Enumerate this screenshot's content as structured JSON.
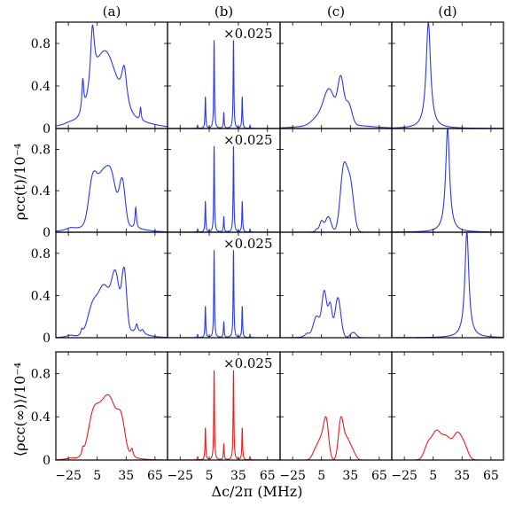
{
  "figure": {
    "column_labels": [
      "(a)",
      "(b)",
      "(c)",
      "(d)"
    ],
    "ylabel_top": "ρcc(t)/10⁻⁴",
    "ylabel_bottom": "⟨ρcc(∞)⟩/10⁻⁴",
    "xlabel": "Δc/2π (MHz)",
    "multiplier_label": "×0.025",
    "colors": {
      "time_dependent": "#2b3bdc",
      "steady_state": "#e0201b",
      "frame": "#000000"
    }
  },
  "chart_data": {
    "type": "line",
    "layout": "grid 4 rows × 4 columns",
    "x_range": [
      -38,
      78
    ],
    "y_range": [
      0,
      1.0
    ],
    "x_ticks": [
      -25,
      5,
      35,
      65
    ],
    "y_ticks": [
      0,
      0.4,
      0.8
    ],
    "panels": [
      {
        "row": 0,
        "col": 0,
        "color": "time_dependent",
        "scale_label": "",
        "peaks": [
          {
            "c": -23,
            "h": 0.02,
            "w": 8,
            "t": "L"
          },
          {
            "c": -10,
            "h": 0.3,
            "w": 1.2,
            "t": "L"
          },
          {
            "c": 0,
            "h": 0.58,
            "w": 2.5,
            "t": "L"
          },
          {
            "c": 13,
            "h": 0.6,
            "w": 11,
            "t": "G"
          },
          {
            "c": 33,
            "h": 0.38,
            "w": 3.5,
            "t": "L"
          },
          {
            "c": 50,
            "h": 0.12,
            "w": 0.8,
            "t": "L"
          },
          {
            "c": 20,
            "h": 0.1,
            "w": 30,
            "t": "G"
          }
        ]
      },
      {
        "row": 0,
        "col": 1,
        "color": "time_dependent",
        "scale_label": "×0.025",
        "peaks": [
          {
            "c": -7,
            "h": 0.03,
            "w": 0.4,
            "t": "L"
          },
          {
            "c": 1,
            "h": 0.3,
            "w": 0.45,
            "t": "L"
          },
          {
            "c": 10,
            "h": 0.84,
            "w": 0.45,
            "t": "L"
          },
          {
            "c": 20,
            "h": 0.15,
            "w": 0.45,
            "t": "L"
          },
          {
            "c": 30,
            "h": 0.84,
            "w": 0.45,
            "t": "L"
          },
          {
            "c": 39,
            "h": 0.3,
            "w": 0.45,
            "t": "L"
          },
          {
            "c": 47,
            "h": 0.03,
            "w": 0.4,
            "t": "L"
          }
        ]
      },
      {
        "row": 0,
        "col": 2,
        "color": "time_dependent",
        "scale_label": "",
        "peaks": [
          {
            "c": 0,
            "h": 0.06,
            "w": 6,
            "t": "G"
          },
          {
            "c": 13,
            "h": 0.33,
            "w": 6,
            "t": "G"
          },
          {
            "c": 25,
            "h": 0.4,
            "w": 3,
            "t": "G"
          },
          {
            "c": 33,
            "h": 0.2,
            "w": 3.5,
            "t": "G"
          },
          {
            "c": 20,
            "h": 0.04,
            "w": 30,
            "t": "G"
          }
        ]
      },
      {
        "row": 0,
        "col": 3,
        "color": "time_dependent",
        "scale_label": "",
        "peaks": [
          {
            "c": 0,
            "h": 1.0,
            "w": 2.8,
            "t": "L"
          }
        ]
      },
      {
        "row": 1,
        "col": 0,
        "color": "time_dependent",
        "scale_label": "",
        "peaks": [
          {
            "c": -23,
            "h": 0.02,
            "w": 5,
            "t": "L"
          },
          {
            "c": 0,
            "h": 0.38,
            "w": 4,
            "t": "G"
          },
          {
            "c": 10,
            "h": 0.45,
            "w": 6,
            "t": "G"
          },
          {
            "c": 20,
            "h": 0.4,
            "w": 5,
            "t": "G"
          },
          {
            "c": 31,
            "h": 0.42,
            "w": 3,
            "t": "G"
          },
          {
            "c": 45,
            "h": 0.2,
            "w": 0.9,
            "t": "L"
          },
          {
            "c": 15,
            "h": 0.08,
            "w": 25,
            "t": "G"
          }
        ]
      },
      {
        "row": 1,
        "col": 1,
        "color": "time_dependent",
        "scale_label": "×0.025",
        "peaks": [
          {
            "c": -7,
            "h": 0.03,
            "w": 0.4,
            "t": "L"
          },
          {
            "c": 1,
            "h": 0.3,
            "w": 0.45,
            "t": "L"
          },
          {
            "c": 10,
            "h": 0.84,
            "w": 0.45,
            "t": "L"
          },
          {
            "c": 20,
            "h": 0.15,
            "w": 0.45,
            "t": "L"
          },
          {
            "c": 30,
            "h": 0.84,
            "w": 0.45,
            "t": "L"
          },
          {
            "c": 39,
            "h": 0.3,
            "w": 0.45,
            "t": "L"
          },
          {
            "c": 47,
            "h": 0.03,
            "w": 0.4,
            "t": "L"
          }
        ]
      },
      {
        "row": 1,
        "col": 2,
        "color": "time_dependent",
        "scale_label": "",
        "peaks": [
          {
            "c": 0,
            "h": 0.03,
            "w": 1.5,
            "t": "L"
          },
          {
            "c": 5,
            "h": 0.1,
            "w": 2,
            "t": "G"
          },
          {
            "c": 12,
            "h": 0.15,
            "w": 3,
            "t": "G"
          },
          {
            "c": 28,
            "h": 0.6,
            "w": 3.5,
            "t": "G"
          },
          {
            "c": 35,
            "h": 0.45,
            "w": 3.5,
            "t": "G"
          }
        ]
      },
      {
        "row": 1,
        "col": 3,
        "color": "time_dependent",
        "scale_label": "",
        "peaks": [
          {
            "c": 20,
            "h": 1.0,
            "w": 2.5,
            "t": "L"
          }
        ]
      },
      {
        "row": 2,
        "col": 0,
        "color": "time_dependent",
        "scale_label": "",
        "peaks": [
          {
            "c": -23,
            "h": 0.02,
            "w": 5,
            "t": "L"
          },
          {
            "c": -11,
            "h": 0.05,
            "w": 1.2,
            "t": "L"
          },
          {
            "c": 0,
            "h": 0.25,
            "w": 5,
            "t": "G"
          },
          {
            "c": 12,
            "h": 0.42,
            "w": 6,
            "t": "G"
          },
          {
            "c": 24,
            "h": 0.5,
            "w": 4,
            "t": "G"
          },
          {
            "c": 33,
            "h": 0.55,
            "w": 2.5,
            "t": "G"
          },
          {
            "c": 46,
            "h": 0.08,
            "w": 1.5,
            "t": "L"
          },
          {
            "c": 52,
            "h": 0.04,
            "w": 2,
            "t": "L"
          },
          {
            "c": 25,
            "h": 0.08,
            "w": 20,
            "t": "G"
          }
        ]
      },
      {
        "row": 2,
        "col": 1,
        "color": "time_dependent",
        "scale_label": "×0.025",
        "peaks": [
          {
            "c": -7,
            "h": 0.03,
            "w": 0.4,
            "t": "L"
          },
          {
            "c": 1,
            "h": 0.3,
            "w": 0.45,
            "t": "L"
          },
          {
            "c": 10,
            "h": 0.84,
            "w": 0.45,
            "t": "L"
          },
          {
            "c": 20,
            "h": 0.15,
            "w": 0.45,
            "t": "L"
          },
          {
            "c": 30,
            "h": 0.84,
            "w": 0.45,
            "t": "L"
          },
          {
            "c": 39,
            "h": 0.3,
            "w": 0.45,
            "t": "L"
          },
          {
            "c": 47,
            "h": 0.03,
            "w": 0.4,
            "t": "L"
          }
        ]
      },
      {
        "row": 2,
        "col": 2,
        "color": "time_dependent",
        "scale_label": "",
        "peaks": [
          {
            "c": -10,
            "h": 0.04,
            "w": 3,
            "t": "L"
          },
          {
            "c": 0,
            "h": 0.2,
            "w": 3.5,
            "t": "G"
          },
          {
            "c": 8,
            "h": 0.43,
            "w": 2.5,
            "t": "G"
          },
          {
            "c": 14,
            "h": 0.3,
            "w": 2,
            "t": "G"
          },
          {
            "c": 22,
            "h": 0.38,
            "w": 3,
            "t": "G"
          },
          {
            "c": 38,
            "h": 0.05,
            "w": 3,
            "t": "G"
          }
        ]
      },
      {
        "row": 2,
        "col": 3,
        "color": "time_dependent",
        "scale_label": "",
        "peaks": [
          {
            "c": 40,
            "h": 1.0,
            "w": 2.5,
            "t": "L"
          }
        ]
      },
      {
        "row": 3,
        "col": 0,
        "color": "steady_state",
        "scale_label": "",
        "peaks": [
          {
            "c": -23,
            "h": 0.01,
            "w": 5,
            "t": "L"
          },
          {
            "c": -10,
            "h": 0.06,
            "w": 1.2,
            "t": "L"
          },
          {
            "c": 0,
            "h": 0.28,
            "w": 5,
            "t": "G"
          },
          {
            "c": 10,
            "h": 0.38,
            "w": 7,
            "t": "G"
          },
          {
            "c": 20,
            "h": 0.36,
            "w": 6,
            "t": "G"
          },
          {
            "c": 30,
            "h": 0.3,
            "w": 4,
            "t": "G"
          },
          {
            "c": 41,
            "h": 0.08,
            "w": 1.5,
            "t": "L"
          },
          {
            "c": 15,
            "h": 0.05,
            "w": 20,
            "t": "G"
          }
        ]
      },
      {
        "row": 3,
        "col": 1,
        "color": "steady_state",
        "scale_label": "×0.025",
        "peaks": [
          {
            "c": -7,
            "h": 0.03,
            "w": 0.4,
            "t": "L"
          },
          {
            "c": 1,
            "h": 0.3,
            "w": 0.45,
            "t": "L"
          },
          {
            "c": 10,
            "h": 0.84,
            "w": 0.45,
            "t": "L"
          },
          {
            "c": 20,
            "h": 0.15,
            "w": 0.45,
            "t": "L"
          },
          {
            "c": 30,
            "h": 0.84,
            "w": 0.45,
            "t": "L"
          },
          {
            "c": 39,
            "h": 0.3,
            "w": 0.45,
            "t": "L"
          },
          {
            "c": 47,
            "h": 0.03,
            "w": 0.4,
            "t": "L"
          }
        ]
      },
      {
        "row": 3,
        "col": 2,
        "color": "steady_state",
        "scale_label": "",
        "peaks": [
          {
            "c": -2,
            "h": 0.06,
            "w": 3,
            "t": "G"
          },
          {
            "c": 5,
            "h": 0.2,
            "w": 4,
            "t": "G"
          },
          {
            "c": 10,
            "h": 0.3,
            "w": 2.5,
            "t": "G"
          },
          {
            "c": 25,
            "h": 0.33,
            "w": 2.5,
            "t": "G"
          },
          {
            "c": 31,
            "h": 0.2,
            "w": 4,
            "t": "G"
          },
          {
            "c": 38,
            "h": 0.05,
            "w": 3,
            "t": "G"
          }
        ]
      },
      {
        "row": 3,
        "col": 3,
        "color": "steady_state",
        "scale_label": "",
        "peaks": [
          {
            "c": 0,
            "h": 0.15,
            "w": 4,
            "t": "G"
          },
          {
            "c": 8,
            "h": 0.2,
            "w": 4,
            "t": "G"
          },
          {
            "c": 18,
            "h": 0.22,
            "w": 6,
            "t": "G"
          },
          {
            "c": 30,
            "h": 0.2,
            "w": 4,
            "t": "G"
          },
          {
            "c": 37,
            "h": 0.13,
            "w": 4,
            "t": "G"
          }
        ]
      }
    ]
  }
}
